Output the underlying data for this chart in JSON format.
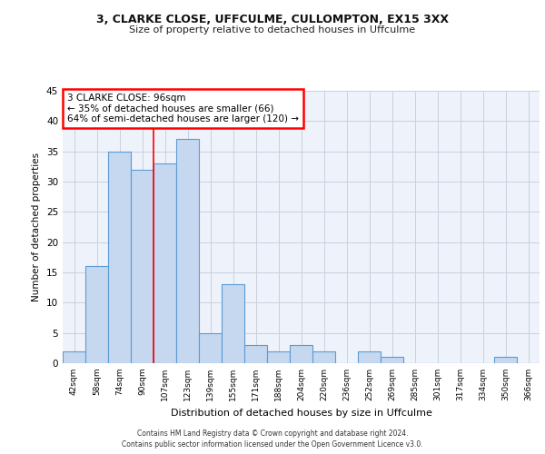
{
  "title1": "3, CLARKE CLOSE, UFFCULME, CULLOMPTON, EX15 3XX",
  "title2": "Size of property relative to detached houses in Uffculme",
  "xlabel": "Distribution of detached houses by size in Uffculme",
  "ylabel": "Number of detached properties",
  "bar_color": "#c5d8f0",
  "bar_edge_color": "#5b9bd5",
  "categories": [
    "42sqm",
    "58sqm",
    "74sqm",
    "90sqm",
    "107sqm",
    "123sqm",
    "139sqm",
    "155sqm",
    "171sqm",
    "188sqm",
    "204sqm",
    "220sqm",
    "236sqm",
    "252sqm",
    "269sqm",
    "285sqm",
    "301sqm",
    "317sqm",
    "334sqm",
    "350sqm",
    "366sqm"
  ],
  "values": [
    2,
    16,
    35,
    32,
    33,
    37,
    5,
    13,
    3,
    2,
    3,
    2,
    0,
    2,
    1,
    0,
    0,
    0,
    0,
    1,
    0
  ],
  "ylim": [
    0,
    45
  ],
  "yticks": [
    0,
    5,
    10,
    15,
    20,
    25,
    30,
    35,
    40,
    45
  ],
  "property_line_x": 3.5,
  "annotation_text": "3 CLARKE CLOSE: 96sqm\n← 35% of detached houses are smaller (66)\n64% of semi-detached houses are larger (120) →",
  "footer_line1": "Contains HM Land Registry data © Crown copyright and database right 2024.",
  "footer_line2": "Contains public sector information licensed under the Open Government Licence v3.0.",
  "grid_color": "#c8d0e0",
  "background_color": "#eef2fa"
}
